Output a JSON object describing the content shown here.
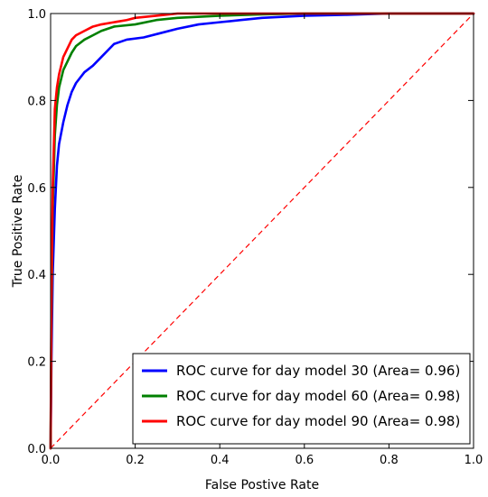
{
  "chart_data": {
    "type": "line",
    "title": "",
    "xlabel": "False Postive Rate",
    "ylabel": "True Positive Rate",
    "xlim": [
      0.0,
      1.0
    ],
    "ylim": [
      0.0,
      1.0
    ],
    "xticks": [
      "0.0",
      "0.2",
      "0.4",
      "0.6",
      "0.8",
      "1.0"
    ],
    "yticks": [
      "0.0",
      "0.2",
      "0.4",
      "0.6",
      "0.8",
      "1.0"
    ],
    "grid": false,
    "legend_position": "lower-right",
    "series": [
      {
        "name": "ROC curve for day model 30 (Area= 0.96)",
        "color": "#0000ff",
        "x": [
          0.0,
          0.002,
          0.005,
          0.01,
          0.015,
          0.02,
          0.03,
          0.04,
          0.05,
          0.06,
          0.08,
          0.1,
          0.12,
          0.15,
          0.18,
          0.22,
          0.26,
          0.3,
          0.35,
          0.4,
          0.45,
          0.5,
          0.6,
          0.7,
          0.8,
          0.9,
          1.0
        ],
        "y": [
          0.0,
          0.2,
          0.4,
          0.55,
          0.65,
          0.7,
          0.75,
          0.79,
          0.82,
          0.84,
          0.865,
          0.88,
          0.9,
          0.93,
          0.94,
          0.945,
          0.955,
          0.965,
          0.975,
          0.98,
          0.985,
          0.99,
          0.995,
          0.997,
          1.0,
          1.0,
          1.0
        ]
      },
      {
        "name": "ROC curve for day model 60 (Area= 0.98)",
        "color": "#008000",
        "x": [
          0.0,
          0.002,
          0.005,
          0.01,
          0.015,
          0.02,
          0.03,
          0.04,
          0.05,
          0.06,
          0.08,
          0.1,
          0.12,
          0.15,
          0.2,
          0.25,
          0.3,
          0.4,
          0.5,
          0.6,
          0.8,
          1.0
        ],
        "y": [
          0.0,
          0.3,
          0.55,
          0.72,
          0.79,
          0.83,
          0.87,
          0.89,
          0.91,
          0.925,
          0.94,
          0.95,
          0.96,
          0.97,
          0.975,
          0.985,
          0.99,
          0.995,
          0.998,
          1.0,
          1.0,
          1.0
        ]
      },
      {
        "name": "ROC curve for day model 90 (Area= 0.98)",
        "color": "#ff0000",
        "x": [
          0.0,
          0.002,
          0.005,
          0.01,
          0.015,
          0.02,
          0.03,
          0.04,
          0.05,
          0.06,
          0.08,
          0.1,
          0.12,
          0.15,
          0.18,
          0.2,
          0.25,
          0.3,
          0.4,
          0.5,
          0.6,
          0.8,
          1.0
        ],
        "y": [
          0.0,
          0.35,
          0.6,
          0.78,
          0.83,
          0.86,
          0.9,
          0.92,
          0.94,
          0.95,
          0.96,
          0.97,
          0.975,
          0.98,
          0.985,
          0.99,
          0.995,
          1.0,
          1.0,
          1.0,
          1.0,
          1.0,
          1.0
        ]
      }
    ],
    "reference_line": {
      "color": "#ff0000",
      "style": "dashed",
      "x": [
        0.0,
        1.0
      ],
      "y": [
        0.0,
        1.0
      ]
    }
  }
}
